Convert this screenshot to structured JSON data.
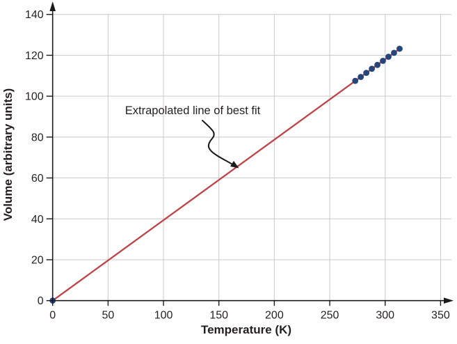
{
  "chart_data": {
    "type": "scatter",
    "title": "",
    "xlabel": "Temperature (K)",
    "ylabel": "Volume (arbitrary units)",
    "xlim": [
      0,
      350
    ],
    "ylim": [
      0,
      140
    ],
    "xticks": [
      0,
      50,
      100,
      150,
      200,
      250,
      300,
      350
    ],
    "yticks": [
      0,
      20,
      40,
      60,
      80,
      100,
      120,
      140
    ],
    "grid": true,
    "legend": false,
    "series": [
      {
        "name": "extrapolated-best-fit-line",
        "type": "line",
        "color": "#bf4348",
        "points": [
          [
            0,
            0
          ],
          [
            313,
            123.2
          ]
        ]
      },
      {
        "name": "measured-data-points",
        "type": "scatter",
        "color": "#26457b",
        "points": [
          [
            0,
            0
          ],
          [
            273,
            107.5
          ],
          [
            278,
            109.4
          ],
          [
            283,
            111.4
          ],
          [
            288,
            113.4
          ],
          [
            293,
            115.3
          ],
          [
            298,
            117.3
          ],
          [
            303,
            119.3
          ],
          [
            308,
            121.2
          ],
          [
            313,
            123.2
          ]
        ]
      }
    ],
    "annotation": {
      "text": "Extrapolated line of best fit",
      "target_xy": [
        169,
        66
      ]
    },
    "colors": {
      "grid": "#c9c9c9",
      "axis": "#1a1a1a",
      "text": "#231f20",
      "background": "#ffffff"
    }
  }
}
